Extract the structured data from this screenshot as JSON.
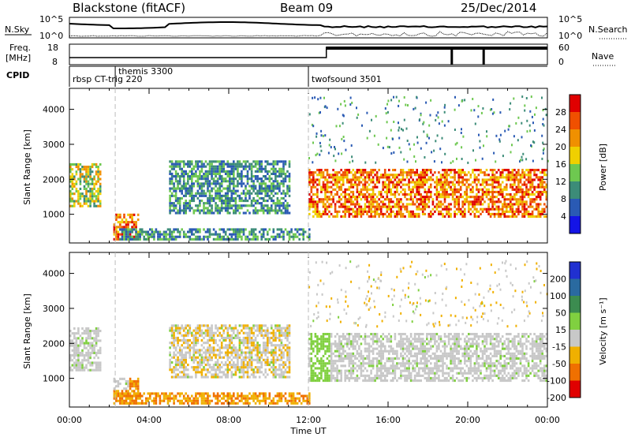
{
  "header": {
    "station": "Blackstone (fitACF)",
    "beam": "Beam 09",
    "date": "25/Dec/2014"
  },
  "noise_panel": {
    "left_label": "N.Sky",
    "right_label": "N.Search",
    "left_ticks": [
      "10^5",
      "10^0"
    ],
    "right_ticks": [
      "10^5",
      "10^0"
    ]
  },
  "freq_panel": {
    "left_label_1": "Freq.",
    "left_label_2": "[MHz]",
    "right_label": "Nave",
    "left_ticks": [
      "18",
      "8"
    ],
    "right_ticks": [
      "60",
      "0"
    ]
  },
  "cpid_panel": {
    "label": "CPID",
    "programs": [
      {
        "name": "rbsp CT-trig 220",
        "start_hour": 0.0
      },
      {
        "name": "themis 3300",
        "start_hour": 2.3
      },
      {
        "name": "twofsound 3501",
        "start_hour": 12.0
      }
    ]
  },
  "chart_data": [
    {
      "type": "heatmap",
      "name": "power",
      "ylabel": "Slant Range [km]",
      "xlabel": "",
      "ylim": [
        180,
        4600
      ],
      "xlim": [
        0,
        24
      ],
      "yticks": [
        "1000",
        "2000",
        "3000",
        "4000"
      ],
      "ytick_values": [
        1000,
        2000,
        3000,
        4000
      ],
      "colorbar": {
        "label": "Power [dB]",
        "ticks": [
          "4",
          "8",
          "12",
          "16",
          "20",
          "24",
          "28"
        ],
        "colors": [
          "#1414e6",
          "#2a5ab4",
          "#3c8c78",
          "#6ec850",
          "#f0d000",
          "#f09000",
          "#f05000",
          "#e00000"
        ]
      },
      "features": [
        {
          "t": [
            0.0,
            1.6
          ],
          "range": [
            1200,
            2400
          ],
          "level": "medium"
        },
        {
          "t": [
            2.2,
            3.5
          ],
          "range": [
            250,
            1000
          ],
          "level": "high"
        },
        {
          "t": [
            2.5,
            12.0
          ],
          "range": [
            250,
            600
          ],
          "level": "low"
        },
        {
          "t": [
            5.0,
            11.0
          ],
          "range": [
            1000,
            2500
          ],
          "level": "low"
        },
        {
          "t": [
            12.0,
            24.0
          ],
          "range": [
            900,
            2300
          ],
          "level": "high"
        }
      ]
    },
    {
      "type": "heatmap",
      "name": "velocity",
      "ylabel": "Slant Range [km]",
      "xlabel": "Time UT",
      "ylim": [
        180,
        4600
      ],
      "xlim": [
        0,
        24
      ],
      "yticks": [
        "1000",
        "2000",
        "3000",
        "4000"
      ],
      "ytick_values": [
        1000,
        2000,
        3000,
        4000
      ],
      "xticks": [
        "00:00",
        "04:00",
        "08:00",
        "12:00",
        "16:00",
        "20:00",
        "00:00"
      ],
      "colorbar": {
        "label": "Velocity [m s⁻¹]",
        "ticks": [
          "200",
          "100",
          "50",
          "15",
          "-15",
          "-50",
          "-100",
          "-200"
        ],
        "colors": [
          "#2030d0",
          "#2a6aa0",
          "#3c8c50",
          "#80d040",
          "#c8c8c8",
          "#f0b000",
          "#f07000",
          "#e00000"
        ]
      }
    }
  ]
}
